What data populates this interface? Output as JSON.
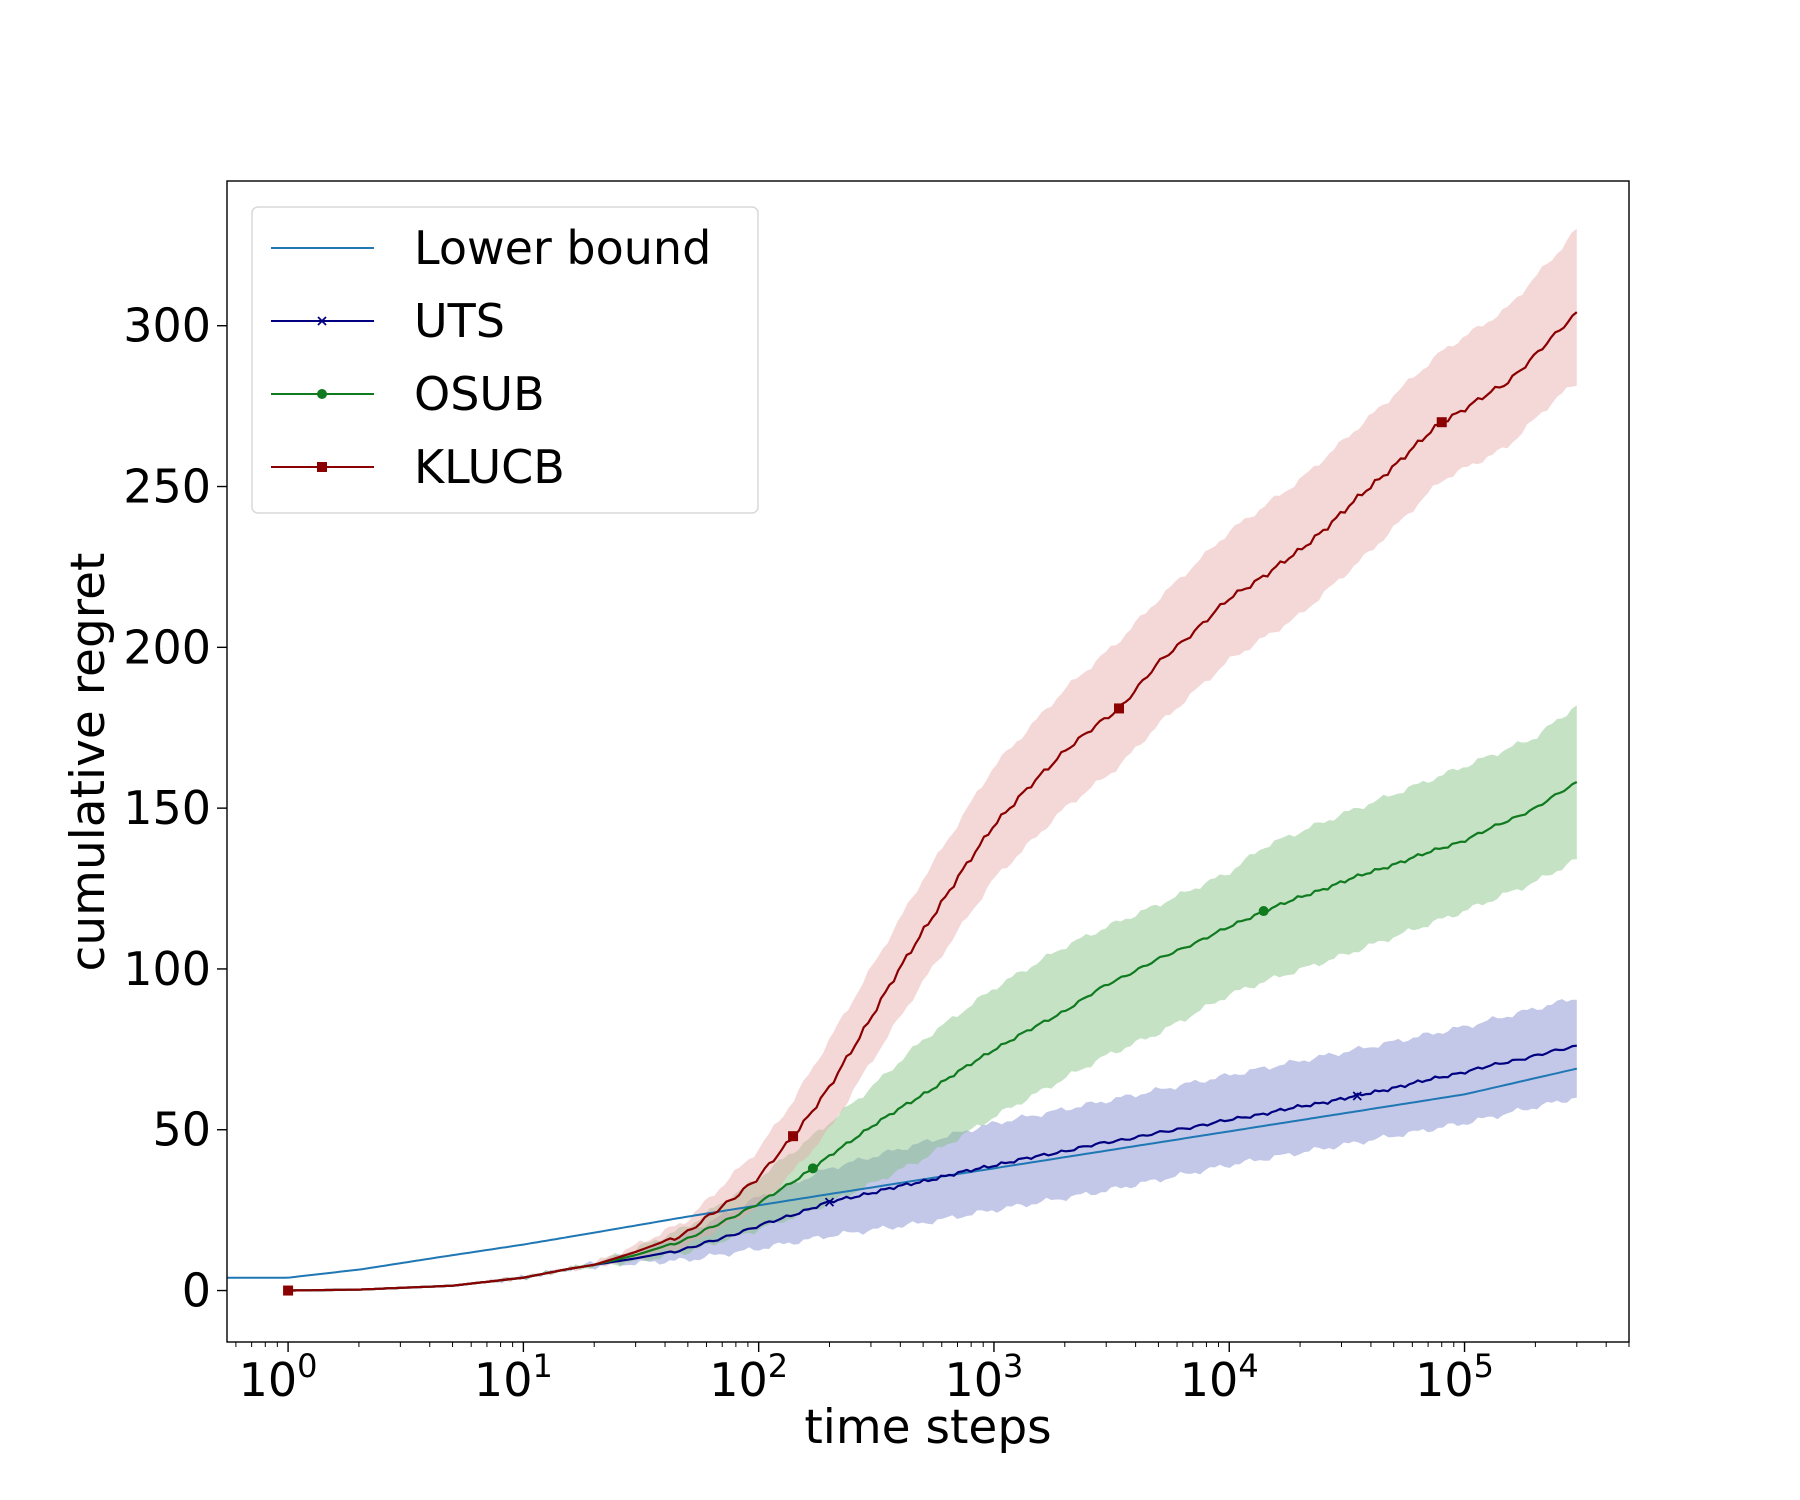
{
  "chart_data": {
    "type": "line",
    "title": "",
    "xlabel": "time steps",
    "ylabel": "cumulative regret",
    "xscale": "log",
    "xlim": [
      0.55,
      500000
    ],
    "ylim": [
      -16,
      345
    ],
    "xticks": [
      {
        "value": 1,
        "base": "10",
        "exp": "0"
      },
      {
        "value": 10,
        "base": "10",
        "exp": "1"
      },
      {
        "value": 100,
        "base": "10",
        "exp": "2"
      },
      {
        "value": 1000,
        "base": "10",
        "exp": "3"
      },
      {
        "value": 10000,
        "base": "10",
        "exp": "4"
      },
      {
        "value": 100000,
        "base": "10",
        "exp": "5"
      }
    ],
    "yticks": [
      0,
      50,
      100,
      150,
      200,
      250,
      300
    ],
    "grid": false,
    "legend_position": "upper-left",
    "series": [
      {
        "name": "Lower bound",
        "color": "#1f77b4",
        "marker": "none",
        "x": [
          0.55,
          1,
          2,
          5,
          10,
          20,
          50,
          100,
          200,
          1000,
          10000,
          100000,
          300000
        ],
        "y": [
          4,
          4,
          6.5,
          11,
          14.3,
          18,
          23,
          26.5,
          30,
          38,
          49.5,
          61,
          69
        ]
      },
      {
        "name": "UTS",
        "color": "#000080",
        "marker": "x",
        "marker_at": [
          200,
          35000
        ],
        "band_color": "#7986cb",
        "x": [
          1,
          2,
          5,
          10,
          15,
          20,
          30,
          50,
          100,
          200,
          500,
          1000,
          3000,
          10000,
          35000,
          100000,
          300000
        ],
        "y": [
          0,
          0.3,
          1.5,
          4,
          6.5,
          8,
          10,
          13,
          20,
          27.5,
          34,
          39,
          46,
          53,
          60.5,
          68,
          76
        ],
        "lower": [
          0,
          0.3,
          1.5,
          4,
          6.5,
          7.5,
          8.5,
          9.5,
          13,
          17,
          21,
          25,
          31,
          39,
          46,
          52,
          60
        ],
        "upper": [
          0,
          0.3,
          1.5,
          4,
          6.5,
          8.5,
          12,
          18,
          29,
          38,
          46,
          52,
          59,
          67,
          75,
          82,
          91
        ]
      },
      {
        "name": "OSUB",
        "color": "#107a1f",
        "marker": "circle",
        "marker_at": [
          170,
          14000
        ],
        "band_color": "#7fbf7f",
        "x": [
          1,
          2,
          5,
          10,
          15,
          20,
          30,
          50,
          100,
          170,
          300,
          500,
          1000,
          2000,
          3000,
          5000,
          10000,
          14000,
          30000,
          100000,
          200000,
          300000
        ],
        "y": [
          0,
          0.3,
          1.5,
          4,
          6.5,
          8,
          11,
          16,
          27,
          38,
          51,
          61,
          75,
          87,
          95,
          103,
          113,
          118,
          127,
          140,
          150,
          158
        ],
        "lower": [
          0,
          0.3,
          1.5,
          4,
          6.5,
          7.5,
          9,
          12,
          19,
          25,
          33,
          41,
          54,
          66,
          73,
          80,
          92,
          96,
          104,
          118,
          127,
          134
        ],
        "upper": [
          0,
          0.3,
          1.5,
          4,
          6.5,
          8.5,
          13,
          20,
          35,
          48,
          63,
          78,
          94,
          107,
          113,
          120,
          130,
          138,
          148,
          163,
          172,
          182
        ]
      },
      {
        "name": "KLUCB",
        "color": "#8b0000",
        "marker": "square",
        "marker_at": [
          1,
          140,
          3400,
          80000
        ],
        "band_color": "#e6a8a8",
        "x": [
          1,
          2,
          5,
          10,
          15,
          20,
          30,
          50,
          100,
          140,
          200,
          300,
          500,
          1000,
          2000,
          3400,
          5000,
          10000,
          20000,
          40000,
          80000,
          150000,
          250000,
          300000
        ],
        "y": [
          0,
          0.3,
          1.5,
          4,
          6.5,
          8,
          12,
          18,
          35,
          48,
          63,
          85,
          112,
          145,
          168,
          181,
          195,
          215,
          230,
          250,
          270,
          282,
          298,
          304
        ],
        "lower": [
          0,
          0.3,
          1.5,
          4,
          6.5,
          7.5,
          10,
          14,
          26,
          37,
          50,
          71,
          96,
          128,
          150,
          163,
          176,
          196,
          210,
          230,
          252,
          262,
          278,
          282
        ],
        "upper": [
          0,
          0.3,
          1.5,
          4,
          6.5,
          8.5,
          14,
          22,
          44,
          59,
          78,
          100,
          128,
          163,
          187,
          202,
          215,
          236,
          252,
          272,
          292,
          305,
          323,
          330
        ]
      }
    ]
  }
}
